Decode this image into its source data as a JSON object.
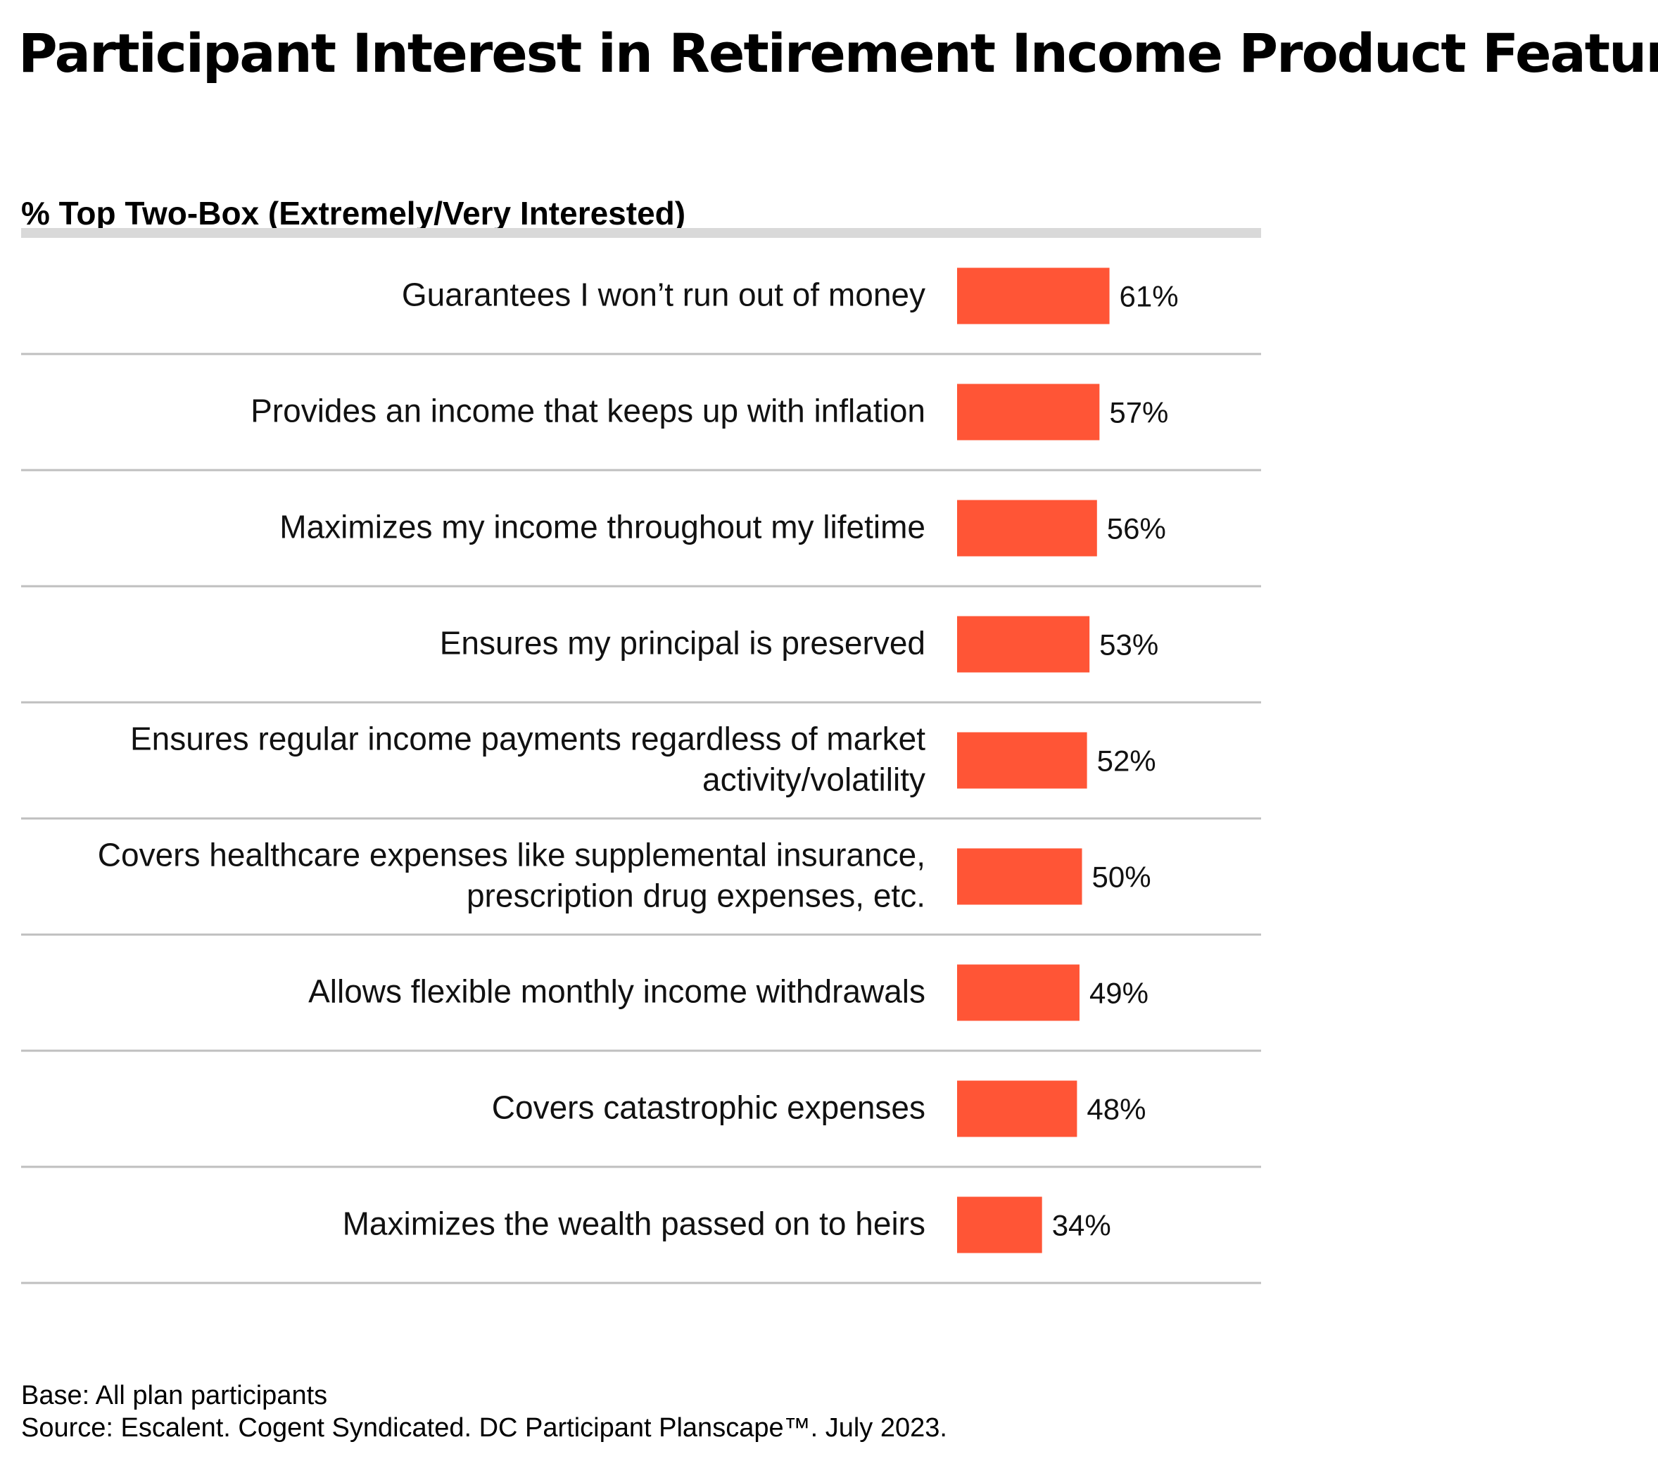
{
  "title": "Participant Interest in Retirement Income Product Features",
  "subtitle": "% Top Two-Box (Extremely/Very Interested)",
  "footer": {
    "base": "Base: All plan participants",
    "source": "Source: Escalent. Cogent Syndicated. DC Participant Planscape™. July 2023."
  },
  "colors": {
    "bar": "#ff5536",
    "rule": "#bfbfbf",
    "header_rule": "#d9d9d9"
  },
  "chart_data": {
    "type": "bar",
    "orientation": "horizontal",
    "title": "Participant Interest in Retirement Income Product Features",
    "subtitle": "% Top Two-Box (Extremely/Very Interested)",
    "categories": [
      [
        "Guarantees I won’t run out of money"
      ],
      [
        "Provides an income that keeps up with inflation"
      ],
      [
        "Maximizes my income throughout my lifetime"
      ],
      [
        "Ensures my principal is preserved"
      ],
      [
        "Ensures regular income payments regardless of market",
        "activity/volatility"
      ],
      [
        "Covers healthcare expenses like supplemental insurance,",
        "prescription drug expenses, etc."
      ],
      [
        "Allows flexible monthly income withdrawals"
      ],
      [
        "Covers catastrophic expenses"
      ],
      [
        "Maximizes the wealth passed on to heirs"
      ]
    ],
    "values": [
      61,
      57,
      56,
      53,
      52,
      50,
      49,
      48,
      34
    ],
    "value_labels": [
      "61%",
      "57%",
      "56%",
      "53%",
      "52%",
      "50%",
      "49%",
      "48%",
      "34%"
    ],
    "unit": "%",
    "grid": false,
    "legend": "none"
  }
}
